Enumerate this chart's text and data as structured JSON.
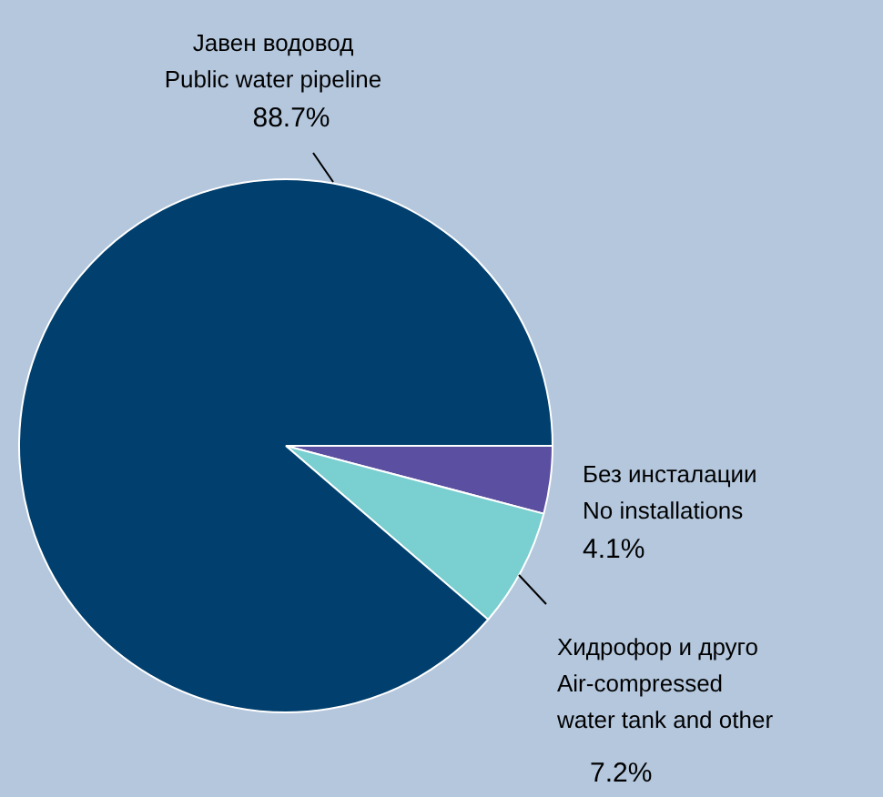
{
  "chart_data": {
    "type": "pie",
    "categories": [
      "Без инсталации\nNo installations",
      "Хидрофор и друго\nAir-compressed\nwater tank and other",
      "Јавен водовод\nPublic water pipeline"
    ],
    "values": [
      4.1,
      7.2,
      88.7
    ],
    "value_labels": [
      "4.1%",
      "7.2%",
      "88.7%"
    ],
    "colors": [
      "#5a4fa0",
      "#7acfd0",
      "#003f6e"
    ],
    "legend": false
  }
}
